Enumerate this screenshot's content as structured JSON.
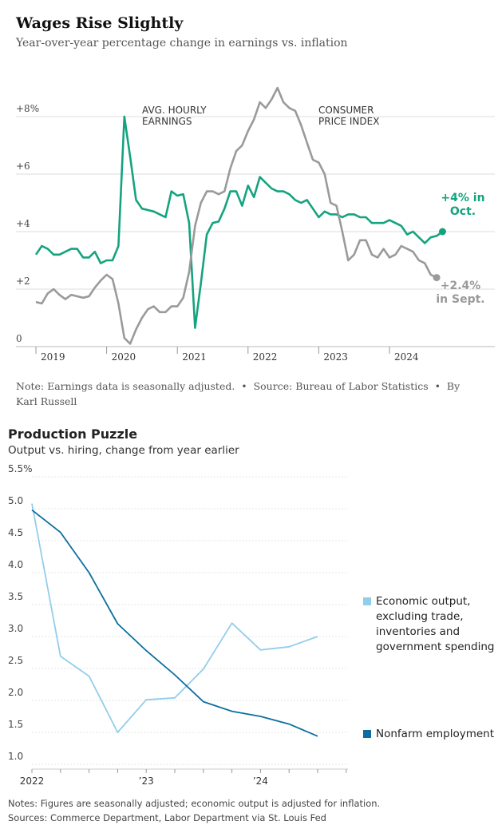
{
  "chart_data": [
    {
      "type": "line",
      "title": "Wages Rise Slightly",
      "subtitle": "Year-over-year percentage change in earnings vs. inflation",
      "categories": [
        "2019",
        null,
        null,
        null,
        null,
        null,
        null,
        null,
        null,
        null,
        null,
        null,
        "2020",
        null,
        null,
        null,
        null,
        null,
        null,
        null,
        null,
        null,
        null,
        null,
        "2021",
        null,
        null,
        null,
        null,
        null,
        null,
        null,
        null,
        null,
        null,
        null,
        "2022",
        null,
        null,
        null,
        null,
        null,
        null,
        null,
        null,
        null,
        null,
        null,
        "2023",
        null,
        null,
        null,
        null,
        null,
        null,
        null,
        null,
        null,
        null,
        null,
        "2024",
        null,
        null,
        null,
        null,
        null,
        null,
        null,
        null,
        null
      ],
      "series": [
        {
          "name": "AVG. HOURLY EARNINGS",
          "color": "#15a37f",
          "values": [
            3.2,
            3.5,
            3.4,
            3.2,
            3.2,
            3.3,
            3.4,
            3.4,
            3.1,
            3.1,
            3.3,
            2.9,
            3.0,
            3.0,
            3.5,
            8.0,
            6.6,
            5.1,
            4.8,
            4.75,
            4.7,
            4.6,
            4.5,
            5.4,
            5.25,
            5.3,
            4.3,
            0.65,
            2.2,
            3.9,
            4.3,
            4.35,
            4.8,
            5.4,
            5.4,
            4.9,
            5.6,
            5.2,
            5.9,
            5.7,
            5.5,
            5.4,
            5.4,
            5.3,
            5.1,
            5.0,
            5.1,
            4.8,
            4.5,
            4.7,
            4.6,
            4.6,
            4.5,
            4.6,
            4.6,
            4.5,
            4.5,
            4.3,
            4.3,
            4.3,
            4.4,
            4.3,
            4.2,
            3.9,
            4.0,
            3.8,
            3.6,
            3.8,
            3.85,
            4.0
          ]
        },
        {
          "name": "CONSUMER PRICE INDEX",
          "color": "#9a9a9a",
          "values": [
            1.55,
            1.5,
            1.85,
            2.0,
            1.8,
            1.65,
            1.8,
            1.75,
            1.7,
            1.75,
            2.05,
            2.3,
            2.5,
            2.35,
            1.5,
            0.3,
            0.1,
            0.6,
            1.0,
            1.3,
            1.4,
            1.2,
            1.2,
            1.4,
            1.4,
            1.7,
            2.6,
            4.2,
            5.0,
            5.4,
            5.4,
            5.3,
            5.4,
            6.2,
            6.8,
            7.0,
            7.5,
            7.9,
            8.5,
            8.3,
            8.6,
            9.0,
            8.5,
            8.3,
            8.2,
            7.7,
            7.1,
            6.5,
            6.4,
            6.0,
            5.0,
            4.9,
            4.0,
            3.0,
            3.2,
            3.7,
            3.7,
            3.2,
            3.1,
            3.4,
            3.1,
            3.2,
            3.5,
            3.4,
            3.3,
            3.0,
            2.9,
            2.5,
            2.4,
            null
          ]
        }
      ],
      "annotations": [
        "+4% in Oct.",
        "+2.4% in Sept."
      ],
      "ylim": [
        0,
        9.5
      ],
      "yticks": [
        0,
        2,
        4,
        6,
        {
          "value": 8,
          "label": "+8%"
        }
      ],
      "grid": true,
      "note": "Note: Earnings data is seasonally adjusted.  •  Source: Bureau of Labor Statistics  •  By Karl Russell"
    },
    {
      "type": "line",
      "title": "Production Puzzle",
      "subtitle": "Output vs. hiring, change from year earlier",
      "categories": [
        "2022",
        null,
        null,
        null,
        "’23",
        null,
        null,
        null,
        "’24",
        null,
        null
      ],
      "series": [
        {
          "name": "Economic output, excluding trade, inventories and government spending",
          "color": "#94cdea",
          "values": [
            5.08,
            2.69,
            2.38,
            1.5,
            2.01,
            2.04,
            2.49,
            3.21,
            2.79,
            2.84,
            3.0
          ]
        },
        {
          "name": "Nonfarm employment",
          "color": "#0b6e9f",
          "values": [
            4.98,
            4.63,
            4.0,
            3.2,
            2.78,
            2.4,
            1.98,
            1.83,
            1.75,
            1.63,
            1.44
          ]
        }
      ],
      "ylim": [
        1.0,
        5.5
      ],
      "yticks": [
        {
          "value": 1.0,
          "label": "1.0"
        },
        1.5,
        {
          "value": 2.0,
          "label": "2.0"
        },
        2.5,
        {
          "value": 3.0,
          "label": "3.0"
        },
        3.5,
        {
          "value": 4.0,
          "label": "4.0"
        },
        4.5,
        {
          "value": 5.0,
          "label": "5.0"
        },
        {
          "value": 5.5,
          "label": "5.5%"
        }
      ],
      "grid": true,
      "notes": "Notes: Figures are seasonally adjusted; economic output is adjusted for inflation.",
      "sources": "Sources: Commerce Department, Labor Department via St. Louis Fed"
    }
  ]
}
